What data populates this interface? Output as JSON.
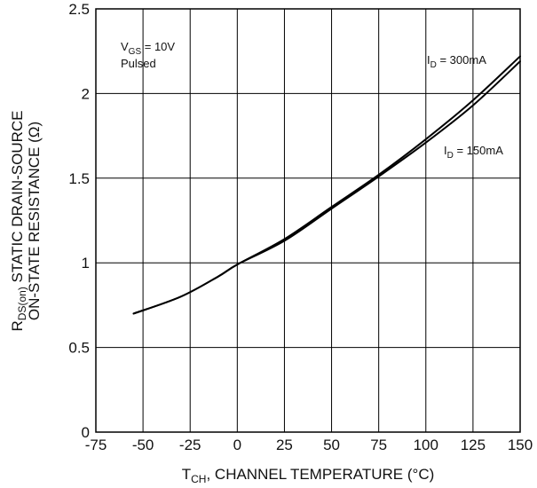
{
  "chart_data": {
    "type": "line",
    "xlabel": {
      "main": "T",
      "sub": "CH",
      "rest": ", CHANNEL TEMPERATURE (°C)"
    },
    "ylabel": {
      "line1_main": "R",
      "line1_sub": "DS(on)",
      "line1_rest": " STATIC DRAIN-SOURCE",
      "line2": "ON-STATE RESISTANCE (Ω)"
    },
    "xlim": [
      -75,
      150
    ],
    "ylim": [
      0,
      2.5
    ],
    "x_ticks": [
      -75,
      -50,
      -25,
      0,
      25,
      50,
      75,
      100,
      125,
      150
    ],
    "y_ticks": [
      0,
      0.5,
      1,
      1.5,
      2,
      2.5
    ],
    "x_tick_labels": [
      "-75",
      "-50",
      "-25",
      "0",
      "25",
      "50",
      "75",
      "100",
      "125",
      "150"
    ],
    "y_tick_labels": [
      "0",
      "0.5",
      "1",
      "1.5",
      "2",
      "2.5"
    ],
    "grid": true,
    "conditions": {
      "line1_main": "V",
      "line1_sub": "GS",
      "line1_rest": " = 10V",
      "line2": "Pulsed"
    },
    "series": [
      {
        "label_main": "I",
        "label_sub": "D",
        "label_rest": " = 300mA",
        "x": [
          -55,
          -30,
          -10,
          0,
          25,
          50,
          75,
          100,
          125,
          150
        ],
        "y": [
          0.7,
          0.8,
          0.92,
          0.99,
          1.14,
          1.33,
          1.52,
          1.73,
          1.96,
          2.22
        ]
      },
      {
        "label_main": "I",
        "label_sub": "D",
        "label_rest": " = 150mA",
        "x": [
          -55,
          -30,
          -10,
          0,
          25,
          50,
          75,
          100,
          125,
          150
        ],
        "y": [
          0.7,
          0.8,
          0.92,
          0.99,
          1.13,
          1.32,
          1.51,
          1.71,
          1.93,
          2.19
        ]
      }
    ]
  }
}
